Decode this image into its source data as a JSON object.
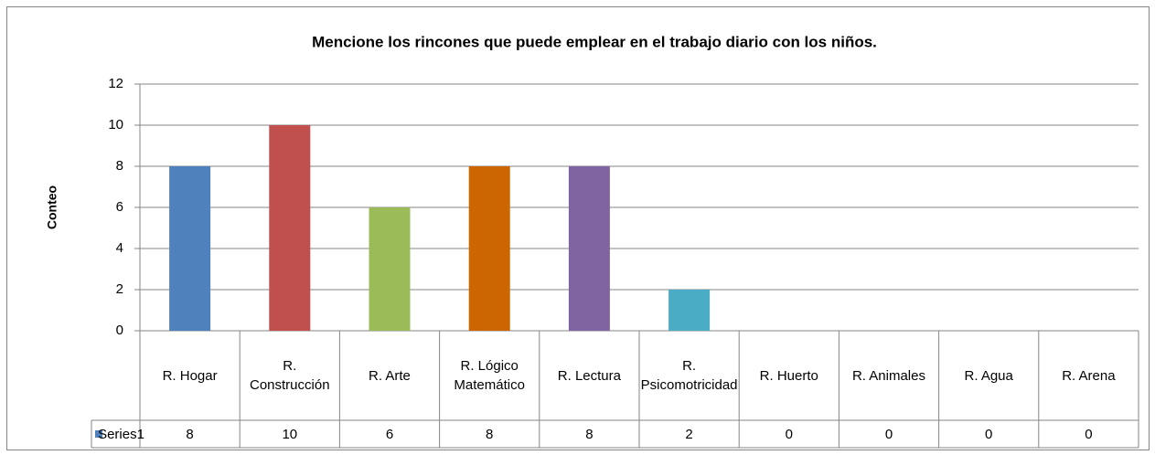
{
  "chart_data": {
    "type": "bar",
    "title": "Mencione los rincones que puede emplear en el trabajo diario con los niños.",
    "y_label": "Conteo",
    "categories": [
      "R. Hogar",
      "R. Construcción",
      "R. Arte",
      "R. Lógico Matemático",
      "R. Lectura",
      "R. Psicomotricidad",
      "R. Huerto",
      "R. Animales",
      "R. Agua",
      "R. Arena"
    ],
    "series": [
      {
        "name": "Series1",
        "color": "#4f81bd",
        "values": [
          8,
          10,
          6,
          8,
          8,
          2,
          0,
          0,
          0,
          0
        ]
      }
    ],
    "point_colors": [
      "#4f81bd",
      "#c0504d",
      "#9bbb59",
      "#cc6600",
      "#8064a2",
      "#4bacc6",
      "#4f81bd",
      "#c0504d",
      "#9bbb59",
      "#cc6600"
    ],
    "ylim": [
      0,
      12
    ],
    "yticks": [
      0,
      2,
      4,
      6,
      8,
      10,
      12
    ],
    "grid": true
  }
}
